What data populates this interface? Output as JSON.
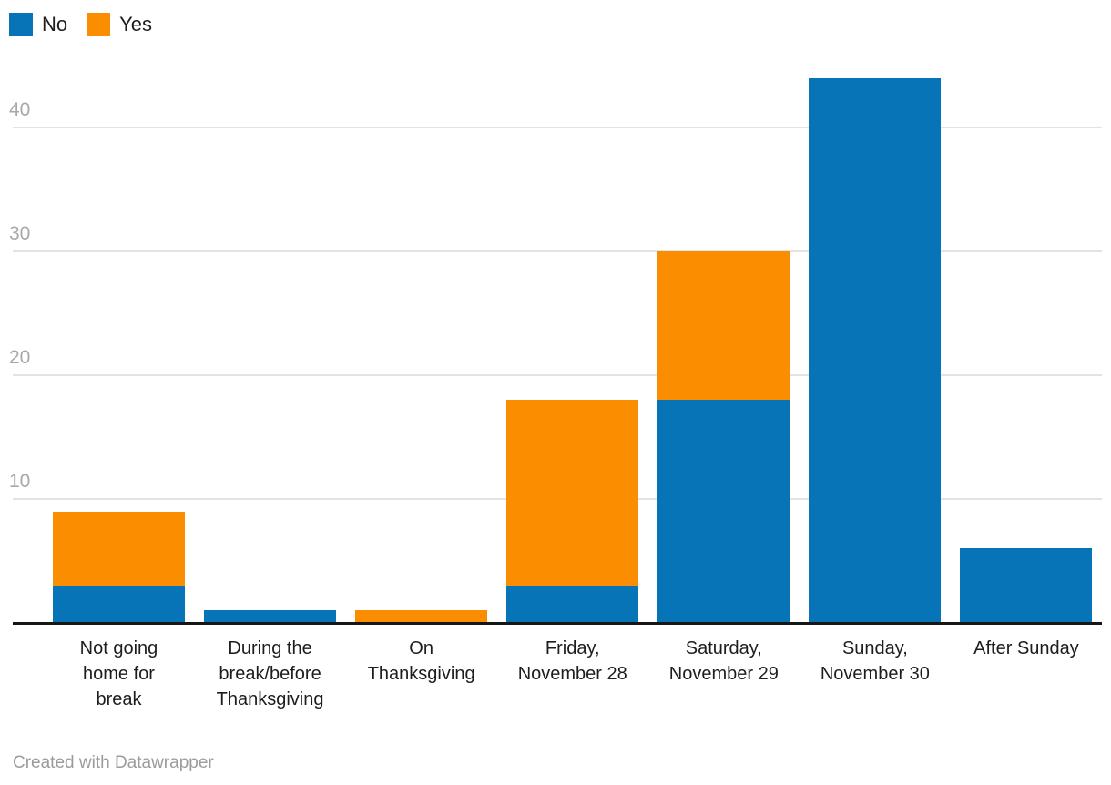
{
  "chart_data": {
    "type": "bar",
    "stacked": true,
    "title": "",
    "xlabel": "",
    "ylabel": "",
    "categories": [
      "Not going home for break",
      "During the break/before Thanksgiving",
      "On Thanksgiving",
      "Friday, November 28",
      "Saturday, November 29",
      "Sunday, November 30",
      "After Sunday"
    ],
    "category_labels_display": [
      "Not going\nhome for\nbreak",
      "During the\nbreak/before\nThanksgiving",
      "On\nThanksgiving",
      "Friday,\nNovember 28",
      "Saturday,\nNovember 29",
      "Sunday,\nNovember 30",
      "After Sunday"
    ],
    "series": [
      {
        "name": "No",
        "color": "#0774b8",
        "values": [
          3,
          1,
          0,
          3,
          18,
          44,
          6
        ]
      },
      {
        "name": "Yes",
        "color": "#fa8e00",
        "values": [
          6,
          0,
          1,
          15,
          12,
          0,
          0
        ]
      }
    ],
    "ylim": [
      0,
      45
    ],
    "yticks": [
      10,
      20,
      30,
      40
    ],
    "grid": true,
    "legend_position": "top-left"
  },
  "footer": {
    "credit": "Created with Datawrapper"
  },
  "colors": {
    "series_no": "#0774b8",
    "series_yes": "#fa8e00",
    "gridline": "#e3e3e3",
    "axis_line": "#161616",
    "tick_label": "#a8a8a8",
    "category_label": "#1d1d1d",
    "credit_text": "#9b9b9b",
    "background": "#ffffff"
  }
}
